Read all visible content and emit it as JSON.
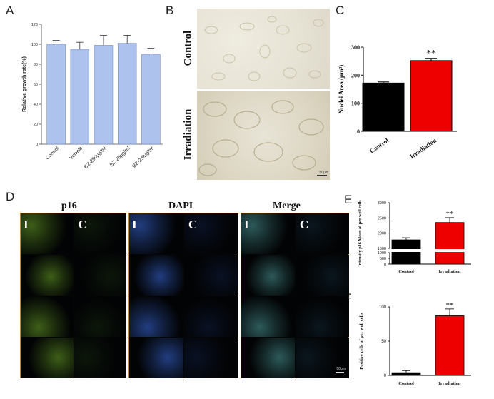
{
  "panels": {
    "A": {
      "letter": "A",
      "chart_data": {
        "type": "bar",
        "categories": [
          "Control",
          "Vehicle",
          "BZ-250μg/ml",
          "BZ-25μg/ml",
          "BZ-2.5μg/ml"
        ],
        "values": [
          100,
          95,
          99,
          101,
          90
        ],
        "errors": [
          4,
          7,
          10,
          8,
          6
        ],
        "ylabel": "Relative growth rate(%)",
        "ylim": [
          0,
          120
        ],
        "yticks": [
          "0",
          "20",
          "40",
          "60",
          "80",
          "100",
          "120"
        ],
        "color": "#aec2ee"
      }
    },
    "B": {
      "letter": "B",
      "control_label": "Control",
      "irradiation_label": "Irradiation",
      "scalebar": "50μm"
    },
    "C": {
      "letter": "C",
      "chart_data": {
        "type": "bar",
        "categories": [
          "Control",
          "Irradiation"
        ],
        "values": [
          172,
          252
        ],
        "errors": [
          4,
          8
        ],
        "colors": [
          "#000000",
          "#ee0000"
        ],
        "ylabel": "Nuclei Area (μm²)",
        "ylim": [
          0,
          300
        ],
        "yticks": [
          "0",
          "100",
          "200",
          "300"
        ],
        "annotation": "**"
      }
    },
    "D": {
      "letter": "D",
      "headers": [
        "p16",
        "DAPI",
        "Merge"
      ],
      "i_label": "I",
      "c_label": "C",
      "scalebar": "50μm"
    },
    "E": {
      "letter": "E",
      "chart_data": {
        "type": "bar",
        "categories": [
          "Control",
          "Irradiation"
        ],
        "values": [
          1780,
          2350
        ],
        "errors": [
          70,
          160
        ],
        "colors": [
          "#000000",
          "#ee0000"
        ],
        "ylabel": "Intensity p16 Mean of per well cells",
        "yticks": [
          "0",
          "500",
          "1000",
          "1500",
          "2000",
          "2500",
          "3000"
        ],
        "axis_break": [
          1000,
          1500
        ],
        "annotation": "**"
      }
    },
    "F": {
      "letter": "F",
      "chart_data": {
        "type": "bar",
        "categories": [
          "Control",
          "Irradiation"
        ],
        "values": [
          4,
          87
        ],
        "errors": [
          3,
          10
        ],
        "colors": [
          "#000000",
          "#ee0000"
        ],
        "ylabel": "Positive cells  of per well cells",
        "ylim": [
          0,
          100
        ],
        "yticks": [
          "0",
          "50",
          "100"
        ],
        "annotation": "**"
      }
    }
  }
}
